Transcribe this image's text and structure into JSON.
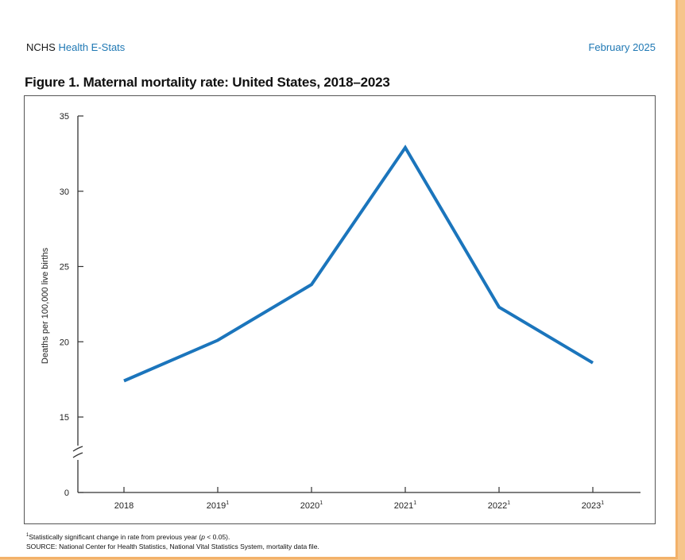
{
  "header": {
    "org": "NCHS",
    "product": "Health E-Stats",
    "date": "February 2025"
  },
  "figure_title": "Figure 1. Maternal mortality rate: United States, 2018–2023",
  "footnote": {
    "marker": "1",
    "text": "Statistically significant change in rate from previous year (",
    "p": "p",
    "text_end": " < 0.05).",
    "source": "SOURCE: National Center for Health Statistics, National Vital Statistics System, mortality data file."
  },
  "colors": {
    "line": "#1b75bc",
    "header_accent": "#1f78b4"
  },
  "chart_data": {
    "type": "line",
    "title": "Figure 1. Maternal mortality rate: United States, 2018–2023",
    "ylabel": "Deaths per 100,000 live births",
    "xlabel": "",
    "categories": [
      "2018",
      "2019",
      "2020",
      "2021",
      "2022",
      "2023"
    ],
    "category_superscripts": [
      "",
      "1",
      "1",
      "1",
      "1",
      "1"
    ],
    "series": [
      {
        "values": [
          17.4,
          20.1,
          23.8,
          32.9,
          22.3,
          18.6
        ]
      }
    ],
    "yticks": [
      0,
      15,
      20,
      25,
      30,
      35
    ],
    "ylim": [
      0,
      35
    ],
    "axis_break": true,
    "grid": false
  }
}
